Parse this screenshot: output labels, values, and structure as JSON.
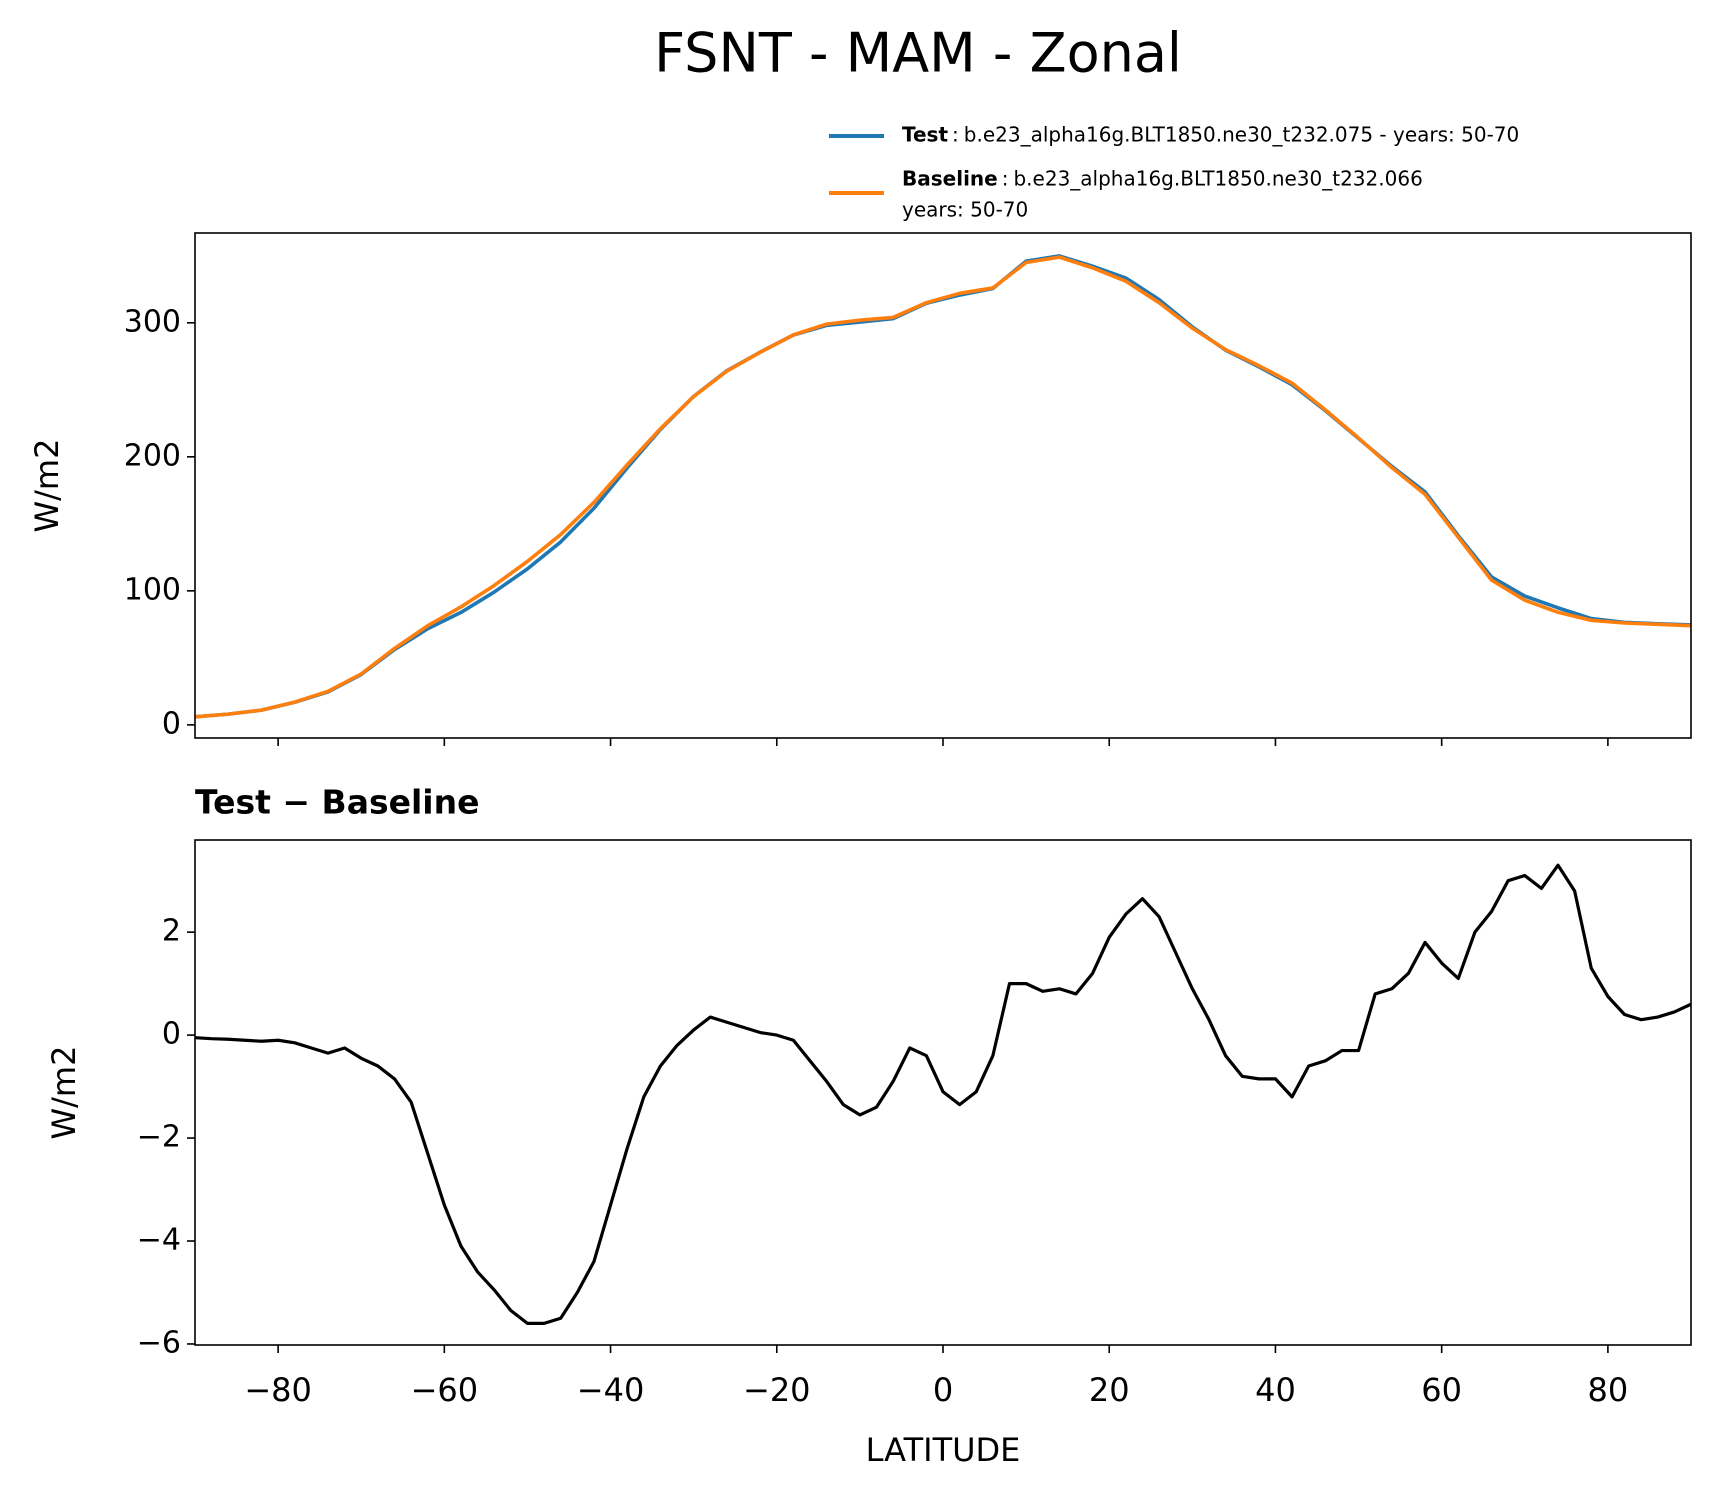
{
  "title": "FSNT - MAM - Zonal",
  "chart_data": [
    {
      "type": "line",
      "ylabel": "W/m2",
      "xlim": [
        -90,
        90
      ],
      "ylim": [
        -9.8,
        367
      ],
      "xticks": [
        -80,
        -60,
        -40,
        -20,
        0,
        20,
        40,
        60,
        80
      ],
      "yticks": [
        0,
        100,
        200,
        300
      ],
      "legend": "upper right",
      "legend_separator": ":",
      "series": [
        {
          "name": "Test",
          "description": [
            "b.e23_alpha16g.BLT1850.ne30_t232.075 - years: 50-70"
          ],
          "color": "#1f77b4",
          "x": [
            -90,
            -86,
            -82,
            -78,
            -74,
            -70,
            -66,
            -62,
            -58,
            -54,
            -50,
            -46,
            -42,
            -38,
            -34,
            -30,
            -26,
            -22,
            -18,
            -14,
            -10,
            -6,
            -2,
            2,
            6,
            10,
            14,
            18,
            22,
            26,
            30,
            34,
            38,
            42,
            46,
            50,
            54,
            58,
            62,
            66,
            70,
            74,
            78,
            82,
            86,
            90
          ],
          "values": [
            6,
            8,
            11,
            16.9,
            24.6,
            37.6,
            56.2,
            71.7,
            83.9,
            99.1,
            116.4,
            136.5,
            161.6,
            191.8,
            220.4,
            245.1,
            264.3,
            278.1,
            290.9,
            298.1,
            300.5,
            303.1,
            314.6,
            320.7,
            325.6,
            346,
            349.9,
            342.2,
            333.4,
            317.3,
            296.9,
            279.6,
            267.2,
            253.8,
            234.5,
            213.7,
            192.9,
            173.8,
            141.1,
            110.4,
            96.1,
            87.3,
            79.3,
            76.4,
            75.4,
            74.6
          ]
        },
        {
          "name": "Baseline",
          "description": [
            "b.e23_alpha16g.BLT1850.ne30_t232.066",
            "years: 50-70"
          ],
          "color": "#ff7f0e",
          "x": [
            -90,
            -86,
            -82,
            -78,
            -74,
            -70,
            -66,
            -62,
            -58,
            -54,
            -50,
            -46,
            -42,
            -38,
            -34,
            -30,
            -26,
            -22,
            -18,
            -14,
            -10,
            -6,
            -2,
            2,
            6,
            10,
            14,
            18,
            22,
            26,
            30,
            34,
            38,
            42,
            46,
            50,
            54,
            58,
            62,
            66,
            70,
            74,
            78,
            82,
            86,
            90
          ],
          "values": [
            6,
            8,
            11,
            17,
            25,
            38,
            57,
            74,
            88,
            104,
            122,
            142,
            166,
            194,
            221,
            245,
            264,
            278,
            291,
            299,
            302,
            304,
            315,
            322,
            326,
            345,
            349,
            341,
            331,
            315,
            296,
            280,
            268,
            255,
            235,
            214,
            192,
            172,
            140,
            108,
            93,
            84,
            78,
            76,
            75,
            74
          ]
        }
      ]
    },
    {
      "type": "line",
      "title": "Test − Baseline",
      "xlabel": "LATITUDE",
      "ylabel": "W/m2",
      "xlim": [
        -90,
        90
      ],
      "ylim": [
        -6.02,
        3.79
      ],
      "xticks": [
        {
          "value": -80,
          "label": "−80"
        },
        {
          "value": -60,
          "label": "−60"
        },
        {
          "value": -40,
          "label": "−40"
        },
        {
          "value": -20,
          "label": "−20"
        },
        0,
        20,
        40,
        60,
        80
      ],
      "yticks": [
        {
          "value": -6,
          "label": "−6"
        },
        {
          "value": -4,
          "label": "−4"
        },
        {
          "value": -2,
          "label": "−2"
        },
        0,
        2
      ],
      "series": [
        {
          "color": "#000000",
          "x": [
            -90,
            -88,
            -86,
            -84,
            -82,
            -80,
            -78,
            -76,
            -74,
            -72,
            -70,
            -68,
            -66,
            -64,
            -62,
            -60,
            -58,
            -56,
            -54,
            -52,
            -50,
            -48,
            -46,
            -44,
            -42,
            -40,
            -38,
            -36,
            -34,
            -32,
            -30,
            -28,
            -26,
            -24,
            -22,
            -20,
            -18,
            -16,
            -14,
            -12,
            -10,
            -8,
            -6,
            -4,
            -2,
            0,
            2,
            4,
            6,
            8,
            10,
            12,
            14,
            16,
            18,
            20,
            22,
            24,
            26,
            28,
            30,
            32,
            34,
            36,
            38,
            40,
            42,
            44,
            46,
            48,
            50,
            52,
            54,
            56,
            58,
            60,
            62,
            64,
            66,
            68,
            70,
            72,
            74,
            76,
            78,
            80,
            82,
            84,
            86,
            88,
            90
          ],
          "values": [
            -0.05,
            -0.07,
            -0.08,
            -0.1,
            -0.12,
            -0.1,
            -0.15,
            -0.25,
            -0.35,
            -0.25,
            -0.45,
            -0.6,
            -0.85,
            -1.3,
            -2.3,
            -3.3,
            -4.1,
            -4.6,
            -4.95,
            -5.35,
            -5.6,
            -5.6,
            -5.5,
            -5.0,
            -4.4,
            -3.3,
            -2.2,
            -1.2,
            -0.6,
            -0.2,
            0.1,
            0.35,
            0.25,
            0.15,
            0.05,
            0.0,
            -0.1,
            -0.5,
            -0.9,
            -1.35,
            -1.55,
            -1.4,
            -0.9,
            -0.25,
            -0.4,
            -1.1,
            -1.35,
            -1.1,
            -0.4,
            1.0,
            1.0,
            0.85,
            0.9,
            0.8,
            1.2,
            1.9,
            2.35,
            2.65,
            2.3,
            1.6,
            0.9,
            0.3,
            -0.4,
            -0.8,
            -0.85,
            -0.85,
            -1.2,
            -0.6,
            -0.5,
            -0.3,
            -0.3,
            0.8,
            0.9,
            1.2,
            1.8,
            1.4,
            1.1,
            2.0,
            2.4,
            3.0,
            3.1,
            2.85,
            3.3,
            2.8,
            1.3,
            0.75,
            0.4,
            0.3,
            0.35,
            0.45,
            0.6
          ]
        }
      ]
    }
  ]
}
